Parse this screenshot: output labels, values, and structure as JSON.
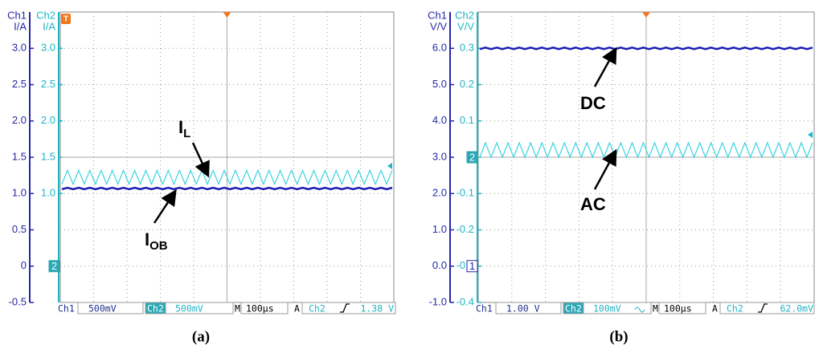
{
  "chart_data": [
    {
      "type": "line",
      "caption": "(a)",
      "y_label": [
        "Ch1",
        "I/A"
      ],
      "y2_label": [
        "Ch2",
        "I/A"
      ],
      "ylim": [
        -0.5,
        3.5
      ],
      "yticks": [
        {
          "value": 3,
          "label": "3.0"
        },
        2.5,
        {
          "value": 2,
          "label": "2.0"
        },
        1.5,
        {
          "value": 1,
          "label": "1.0"
        },
        0.5,
        0,
        -0.5
      ],
      "y2lim": [
        -0.5,
        3.5
      ],
      "y2ticks": [
        {
          "value": 3,
          "label": "3.0"
        },
        2.5,
        {
          "value": 2,
          "label": "2.0"
        },
        1.5,
        {
          "value": 1,
          "label": "1.0"
        }
      ],
      "grid": true,
      "series": [
        {
          "color": "#1c1cb4",
          "values": [
            1.06,
            1.08,
            1.06,
            1.08,
            1.06,
            1.08,
            1.06,
            1.08,
            1.06,
            1.08,
            1.06,
            1.08,
            1.06,
            1.08,
            1.06,
            1.08,
            1.06,
            1.08,
            1.06,
            1.08,
            1.06,
            1.08,
            1.06,
            1.08,
            1.06,
            1.08,
            1.06,
            1.08,
            1.06,
            1.08,
            1.06,
            1.08,
            1.06,
            1.08,
            1.06,
            1.08,
            1.06,
            1.08,
            1.06,
            1.08,
            1.06,
            1.08,
            1.06,
            1.08,
            1.06,
            1.08,
            1.06,
            1.08,
            1.06,
            1.08,
            1.06,
            1.08,
            1.06,
            1.08,
            1.06,
            1.08,
            1.06,
            1.08,
            1.06,
            1.08
          ]
        },
        {
          "color": "#38d4e0",
          "axis": "y2",
          "values": [
            1.13,
            1.32,
            1.13,
            1.32,
            1.13,
            1.32,
            1.13,
            1.32,
            1.13,
            1.32,
            1.13,
            1.32,
            1.13,
            1.32,
            1.13,
            1.32,
            1.13,
            1.32,
            1.13,
            1.32,
            1.13,
            1.32,
            1.13,
            1.32,
            1.13,
            1.32,
            1.13,
            1.32,
            1.13,
            1.32,
            1.13,
            1.32,
            1.13,
            1.32,
            1.13,
            1.32,
            1.13,
            1.32,
            1.13,
            1.32,
            1.13,
            1.32,
            1.13,
            1.32,
            1.13,
            1.32,
            1.13,
            1.32,
            1.13,
            1.32,
            1.13,
            1.32,
            1.13,
            1.32,
            1.13,
            1.32,
            1.13,
            1.32,
            1.13,
            1.32
          ]
        }
      ],
      "markers": [
        {
          "label": "2",
          "value": 0,
          "axis": "y2"
        }
      ],
      "trigger_marker": "T",
      "annotations": [
        {
          "text": "I",
          "sub": "L"
        },
        {
          "text": "I",
          "sub": "OB"
        }
      ],
      "status": {
        "ch1": "Ch1",
        "ch1_scale": "500mV",
        "ch2": "Ch2",
        "ch2_scale": "500mV",
        "time": "M",
        "time_scale": "100µs",
        "trigger": "A",
        "trigger_source": "Ch2",
        "trigger_level": {
          "value": 1.38,
          "label": "1.38 V"
        }
      }
    },
    {
      "type": "line",
      "caption": "(b)",
      "y_label": [
        "Ch1",
        "V/V"
      ],
      "y2_label": [
        "Ch2",
        "V/V"
      ],
      "ylim": [
        -1,
        7
      ],
      "yticks": [
        {
          "value": 6,
          "label": "6.0"
        },
        {
          "value": 5,
          "label": "5.0"
        },
        {
          "value": 4,
          "label": "4.0"
        },
        {
          "value": 3,
          "label": "3.0"
        },
        {
          "value": 2,
          "label": "2.0"
        },
        {
          "value": 1,
          "label": "1.0"
        },
        {
          "value": 0,
          "label": "0.0"
        },
        {
          "value": -1,
          "label": "-1.0"
        }
      ],
      "y2lim": [
        -0.4,
        0.4
      ],
      "y2ticks": [
        0.3,
        0.2,
        0.1,
        0,
        -0.1,
        -0.2,
        -0.3,
        -0.4
      ],
      "grid": true,
      "series": [
        {
          "color": "#1c1cb4",
          "values": [
            5.98,
            6.02,
            5.98,
            6.02,
            5.98,
            6.02,
            5.98,
            6.02,
            5.98,
            6.02,
            5.98,
            6.02,
            5.98,
            6.02,
            5.98,
            6.02,
            5.98,
            6.02,
            5.98,
            6.02,
            5.98,
            6.02,
            5.98,
            6.02,
            5.98,
            6.02,
            5.98,
            6.02,
            5.98,
            6.02,
            5.98,
            6.02,
            5.98,
            6.02,
            5.98,
            6.02,
            5.98,
            6.02,
            5.98,
            6.02,
            5.98,
            6.02,
            5.98,
            6.02,
            5.98,
            6.02,
            5.98,
            6.02,
            5.98,
            6.02,
            5.98,
            6.02,
            5.98,
            6.02,
            5.98,
            6.02,
            5.98,
            6.02,
            5.98,
            6.02
          ]
        },
        {
          "color": "#38d4e0",
          "axis": "y2",
          "values": [
            0.0,
            0.04,
            0.0,
            0.04,
            0.0,
            0.04,
            0.0,
            0.04,
            0.0,
            0.04,
            0.0,
            0.04,
            0.0,
            0.04,
            0.0,
            0.04,
            0.0,
            0.04,
            0.0,
            0.04,
            0.0,
            0.04,
            0.0,
            0.04,
            0.0,
            0.04,
            0.0,
            0.04,
            0.0,
            0.04,
            0.0,
            0.04,
            0.0,
            0.04,
            0.0,
            0.04,
            0.0,
            0.04,
            0.0,
            0.04,
            0.0,
            0.04,
            0.0,
            0.04,
            0.0,
            0.04,
            0.0,
            0.04,
            0.0,
            0.04,
            0.0,
            0.04,
            0.0,
            0.04,
            0.0,
            0.04,
            0.0,
            0.04,
            0.0,
            0.04
          ]
        }
      ],
      "markers": [
        {
          "label": "2",
          "value": 0,
          "axis": "y2"
        },
        {
          "label": "1",
          "value": 0,
          "axis": "y"
        }
      ],
      "annotations": [
        {
          "text": "DC"
        },
        {
          "text": "AC"
        }
      ],
      "status": {
        "ch1": "Ch1",
        "ch1_scale": "1.00 V",
        "ch2": "Ch2",
        "ch2_scale": "100mV",
        "time": "M",
        "time_scale": "100µs",
        "trigger": "A",
        "trigger_source": "Ch2",
        "trigger_level": {
          "value": 0.062,
          "label": "62.0mV"
        }
      }
    }
  ]
}
